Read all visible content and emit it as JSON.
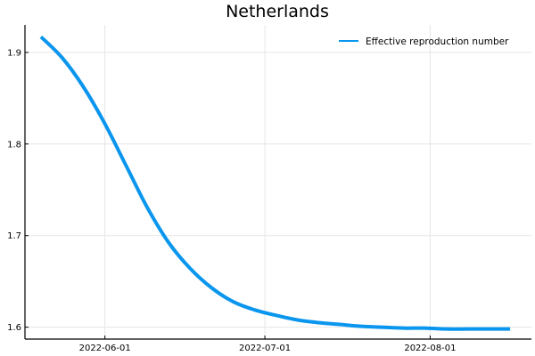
{
  "chart_data": {
    "type": "line",
    "title": "Netherlands",
    "xlabel": "",
    "ylabel": "",
    "x_axis": {
      "type": "date",
      "range": [
        "2022-05-17",
        "2022-08-20"
      ],
      "ticks": [
        "2022-06-01",
        "2022-07-01",
        "2022-08-01"
      ]
    },
    "y_axis": {
      "range": [
        1.587,
        1.93
      ],
      "ticks": [
        1.6,
        1.7,
        1.8,
        1.9
      ],
      "tick_labels": [
        "1.6",
        "1.7",
        "1.8",
        "1.9"
      ]
    },
    "grid": true,
    "legend": {
      "position": "top-right"
    },
    "series": [
      {
        "name": "Effective reproduction number",
        "color": "#0a96ee",
        "points": [
          [
            "2022-05-20",
            1.917
          ],
          [
            "2022-05-24",
            1.894
          ],
          [
            "2022-05-28",
            1.862
          ],
          [
            "2022-06-01",
            1.822
          ],
          [
            "2022-06-05",
            1.776
          ],
          [
            "2022-06-09",
            1.73
          ],
          [
            "2022-06-13",
            1.692
          ],
          [
            "2022-06-17",
            1.664
          ],
          [
            "2022-06-21",
            1.643
          ],
          [
            "2022-06-25",
            1.628
          ],
          [
            "2022-06-29",
            1.619
          ],
          [
            "2022-07-03",
            1.613
          ],
          [
            "2022-07-07",
            1.608
          ],
          [
            "2022-07-11",
            1.605
          ],
          [
            "2022-07-15",
            1.603
          ],
          [
            "2022-07-19",
            1.601
          ],
          [
            "2022-07-23",
            1.6
          ],
          [
            "2022-07-27",
            1.599
          ],
          [
            "2022-07-31",
            1.599
          ],
          [
            "2022-08-04",
            1.598
          ],
          [
            "2022-08-08",
            1.598
          ],
          [
            "2022-08-12",
            1.598
          ],
          [
            "2022-08-16",
            1.598
          ]
        ]
      }
    ]
  }
}
